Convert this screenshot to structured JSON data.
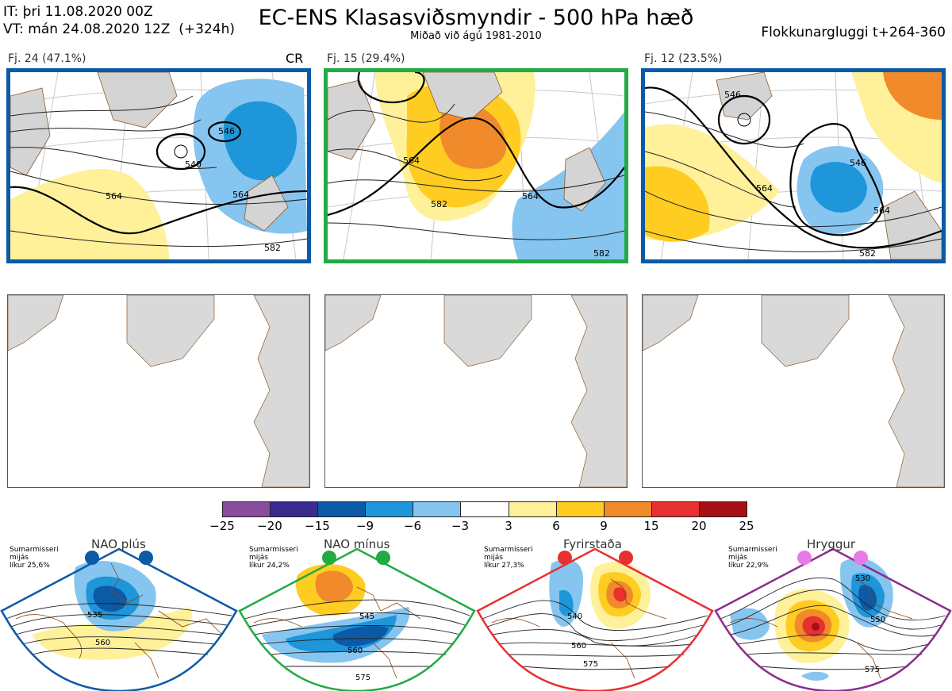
{
  "header": {
    "it_line": "IT: þri 11.08.2020 00Z",
    "vt_line": "VT: mán 24.08.2020 12Z  (+324h)",
    "title": "EC-ENS Klasasviðsmyndir - 500 hPa hæð",
    "subtitle": "Miðað við ágú 1981-2010",
    "window": "Flokkunargluggi t+264-360"
  },
  "clusters": [
    {
      "label": "Fj. 24 (47.1%)",
      "border_color": "#0c5aa6",
      "extra": "CR",
      "contours": [
        "546",
        "540",
        "564",
        "564",
        "582"
      ]
    },
    {
      "label": "Fj. 15 (29.4%)",
      "border_color": "#22aa44",
      "contours": [
        "564",
        "582",
        "564",
        "582"
      ]
    },
    {
      "label": "Fj. 12 (23.5%)",
      "border_color": "#0c5aa6",
      "contours": [
        "546",
        "546",
        "564",
        "564",
        "582"
      ]
    }
  ],
  "colorbar": {
    "ticks": [
      "−25",
      "−20",
      "−15",
      "−9",
      "−6",
      "−3",
      "3",
      "6",
      "9",
      "15",
      "20",
      "25"
    ],
    "colors": [
      "#8a4c9c",
      "#3a2b8f",
      "#0c5aa6",
      "#1e96d9",
      "#86c5ef",
      "#ffffff",
      "#fff09a",
      "#ffcc22",
      "#f08a2a",
      "#e83030",
      "#a50f15"
    ]
  },
  "regimes": [
    {
      "name": "NAO plús",
      "desc": "Sumarmisseri\nmijás\nlíkur 25,6%",
      "dot_color": "#0c5aa6",
      "border_color": "#0c5aa6",
      "contours": [
        "535",
        "560"
      ]
    },
    {
      "name": "NAO mínus",
      "desc": "Sumarmisseri\nmijás\nlíkur 24,2%",
      "dot_color": "#22aa44",
      "border_color": "#22aa44",
      "contours": [
        "545",
        "560",
        "575"
      ]
    },
    {
      "name": "Fyrirstaða",
      "desc": "Sumarmisseri\nmijás\nlíkur 27,3%",
      "dot_color": "#e83030",
      "border_color": "#e83030",
      "contours": [
        "540",
        "560",
        "575"
      ]
    },
    {
      "name": "Hryggur",
      "desc": "Sumarmisseri\nmijás\nlíkur 22,9%",
      "dot_color": "#e67ae6",
      "border_color": "#8a2d8f",
      "contours": [
        "530",
        "550",
        "575"
      ]
    }
  ]
}
